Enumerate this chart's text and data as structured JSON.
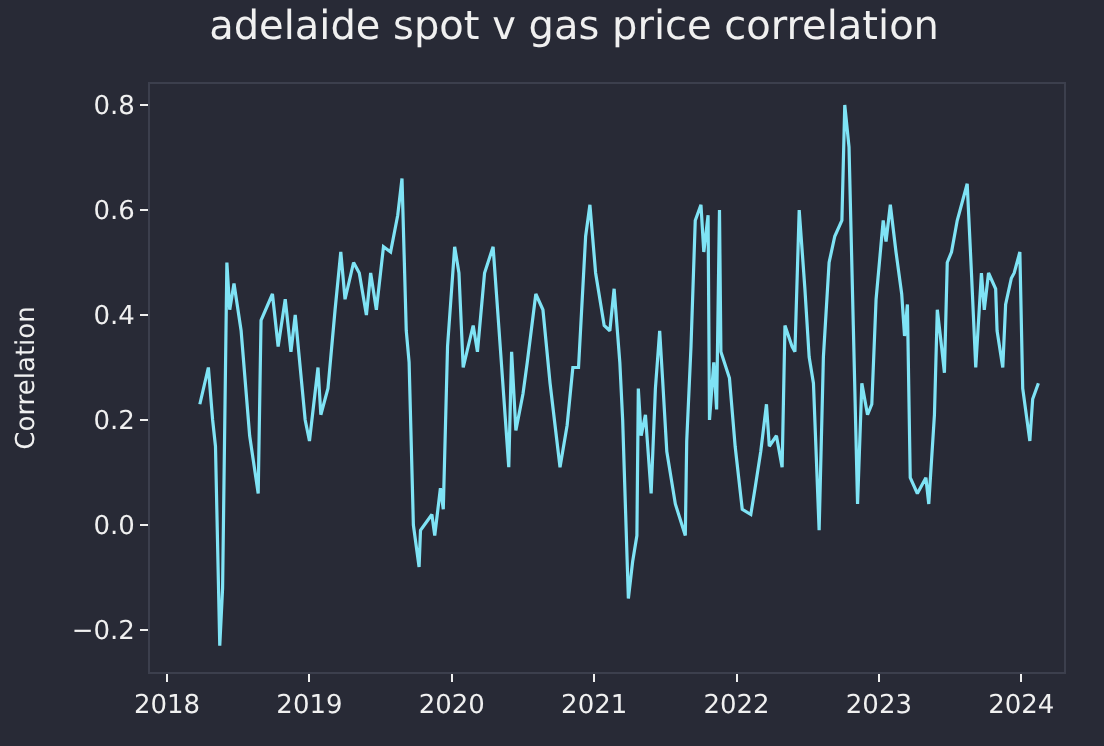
{
  "chart_data": {
    "type": "line",
    "title": "adelaide spot v gas price correlation",
    "ylabel": "Correlation",
    "xlim": [
      2017.88,
      2024.3
    ],
    "xticks": [
      2018,
      2019,
      2020,
      2021,
      2022,
      2023,
      2024
    ],
    "ylim": [
      -0.28,
      0.84
    ],
    "yticks": [
      {
        "value": -0.2,
        "label": "−0.2"
      },
      {
        "value": 0.0,
        "label": "0.0"
      },
      {
        "value": 0.2,
        "label": "0.2"
      },
      {
        "value": 0.4,
        "label": "0.4"
      },
      {
        "value": 0.6,
        "label": "0.6"
      },
      {
        "value": 0.8,
        "label": "0.8"
      }
    ],
    "grid": false,
    "marker": "none",
    "line_style": "solid",
    "series": [
      {
        "color": "#7fe3f5",
        "x": [
          2018.23,
          2018.29,
          2018.32,
          2018.34,
          2018.37,
          2018.39,
          2018.42,
          2018.44,
          2018.47,
          2018.52,
          2018.58,
          2018.64,
          2018.66,
          2018.74,
          2018.78,
          2018.83,
          2018.87,
          2018.9,
          2018.97,
          2019.0,
          2019.06,
          2019.08,
          2019.13,
          2019.18,
          2019.22,
          2019.25,
          2019.31,
          2019.35,
          2019.4,
          2019.43,
          2019.47,
          2019.52,
          2019.57,
          2019.62,
          2019.65,
          2019.68,
          2019.7,
          2019.73,
          2019.77,
          2019.78,
          2019.86,
          2019.88,
          2019.92,
          2019.94,
          2019.97,
          2020.02,
          2020.05,
          2020.08,
          2020.15,
          2020.18,
          2020.23,
          2020.29,
          2020.34,
          2020.4,
          2020.42,
          2020.45,
          2020.5,
          2020.53,
          2020.59,
          2020.64,
          2020.69,
          2020.76,
          2020.81,
          2020.85,
          2020.89,
          2020.94,
          2020.97,
          2021.01,
          2021.07,
          2021.11,
          2021.14,
          2021.18,
          2021.2,
          2021.24,
          2021.27,
          2021.3,
          2021.31,
          2021.33,
          2021.36,
          2021.4,
          2021.43,
          2021.46,
          2021.48,
          2021.51,
          2021.57,
          2021.64,
          2021.65,
          2021.68,
          2021.71,
          2021.75,
          2021.77,
          2021.8,
          2021.81,
          2021.84,
          2021.86,
          2021.88,
          2021.89,
          2021.95,
          2021.99,
          2022.04,
          2022.1,
          2022.13,
          2022.17,
          2022.21,
          2022.23,
          2022.28,
          2022.32,
          2022.34,
          2022.39,
          2022.41,
          2022.44,
          2022.48,
          2022.51,
          2022.54,
          2022.58,
          2022.61,
          2022.65,
          2022.69,
          2022.74,
          2022.76,
          2022.79,
          2022.82,
          2022.85,
          2022.88,
          2022.92,
          2022.95,
          2022.98,
          2023.03,
          2023.05,
          2023.08,
          2023.12,
          2023.16,
          2023.18,
          2023.2,
          2023.22,
          2023.27,
          2023.33,
          2023.35,
          2023.39,
          2023.41,
          2023.44,
          2023.46,
          2023.48,
          2023.51,
          2023.55,
          2023.62,
          2023.65,
          2023.68,
          2023.72,
          2023.74,
          2023.77,
          2023.82,
          2023.83,
          2023.87,
          2023.89,
          2023.93,
          2023.95,
          2023.99,
          2024.01,
          2024.06,
          2024.08,
          2024.12
        ],
        "values": [
          0.23,
          0.3,
          0.2,
          0.15,
          -0.23,
          -0.12,
          0.5,
          0.41,
          0.46,
          0.37,
          0.17,
          0.06,
          0.39,
          0.44,
          0.34,
          0.43,
          0.33,
          0.4,
          0.2,
          0.16,
          0.3,
          0.21,
          0.26,
          0.41,
          0.52,
          0.43,
          0.5,
          0.48,
          0.4,
          0.48,
          0.41,
          0.53,
          0.52,
          0.59,
          0.66,
          0.37,
          0.31,
          0.0,
          -0.08,
          -0.01,
          0.02,
          -0.02,
          0.07,
          0.03,
          0.34,
          0.53,
          0.48,
          0.3,
          0.38,
          0.33,
          0.48,
          0.53,
          0.34,
          0.11,
          0.33,
          0.18,
          0.25,
          0.31,
          0.44,
          0.41,
          0.27,
          0.11,
          0.19,
          0.3,
          0.3,
          0.55,
          0.61,
          0.48,
          0.38,
          0.37,
          0.45,
          0.31,
          0.2,
          -0.14,
          -0.07,
          -0.02,
          0.26,
          0.17,
          0.21,
          0.06,
          0.26,
          0.37,
          0.28,
          0.14,
          0.04,
          -0.02,
          0.16,
          0.34,
          0.58,
          0.61,
          0.52,
          0.59,
          0.2,
          0.31,
          0.22,
          0.6,
          0.33,
          0.28,
          0.15,
          0.03,
          0.02,
          0.07,
          0.14,
          0.23,
          0.15,
          0.17,
          0.11,
          0.38,
          0.34,
          0.33,
          0.6,
          0.45,
          0.32,
          0.27,
          -0.01,
          0.32,
          0.5,
          0.55,
          0.58,
          0.8,
          0.72,
          0.38,
          0.04,
          0.27,
          0.21,
          0.23,
          0.43,
          0.58,
          0.54,
          0.61,
          0.52,
          0.44,
          0.36,
          0.42,
          0.09,
          0.06,
          0.09,
          0.04,
          0.21,
          0.41,
          0.34,
          0.29,
          0.5,
          0.52,
          0.58,
          0.65,
          0.48,
          0.3,
          0.48,
          0.41,
          0.48,
          0.45,
          0.37,
          0.3,
          0.42,
          0.47,
          0.48,
          0.52,
          0.26,
          0.16,
          0.24,
          0.27
        ]
      }
    ]
  }
}
